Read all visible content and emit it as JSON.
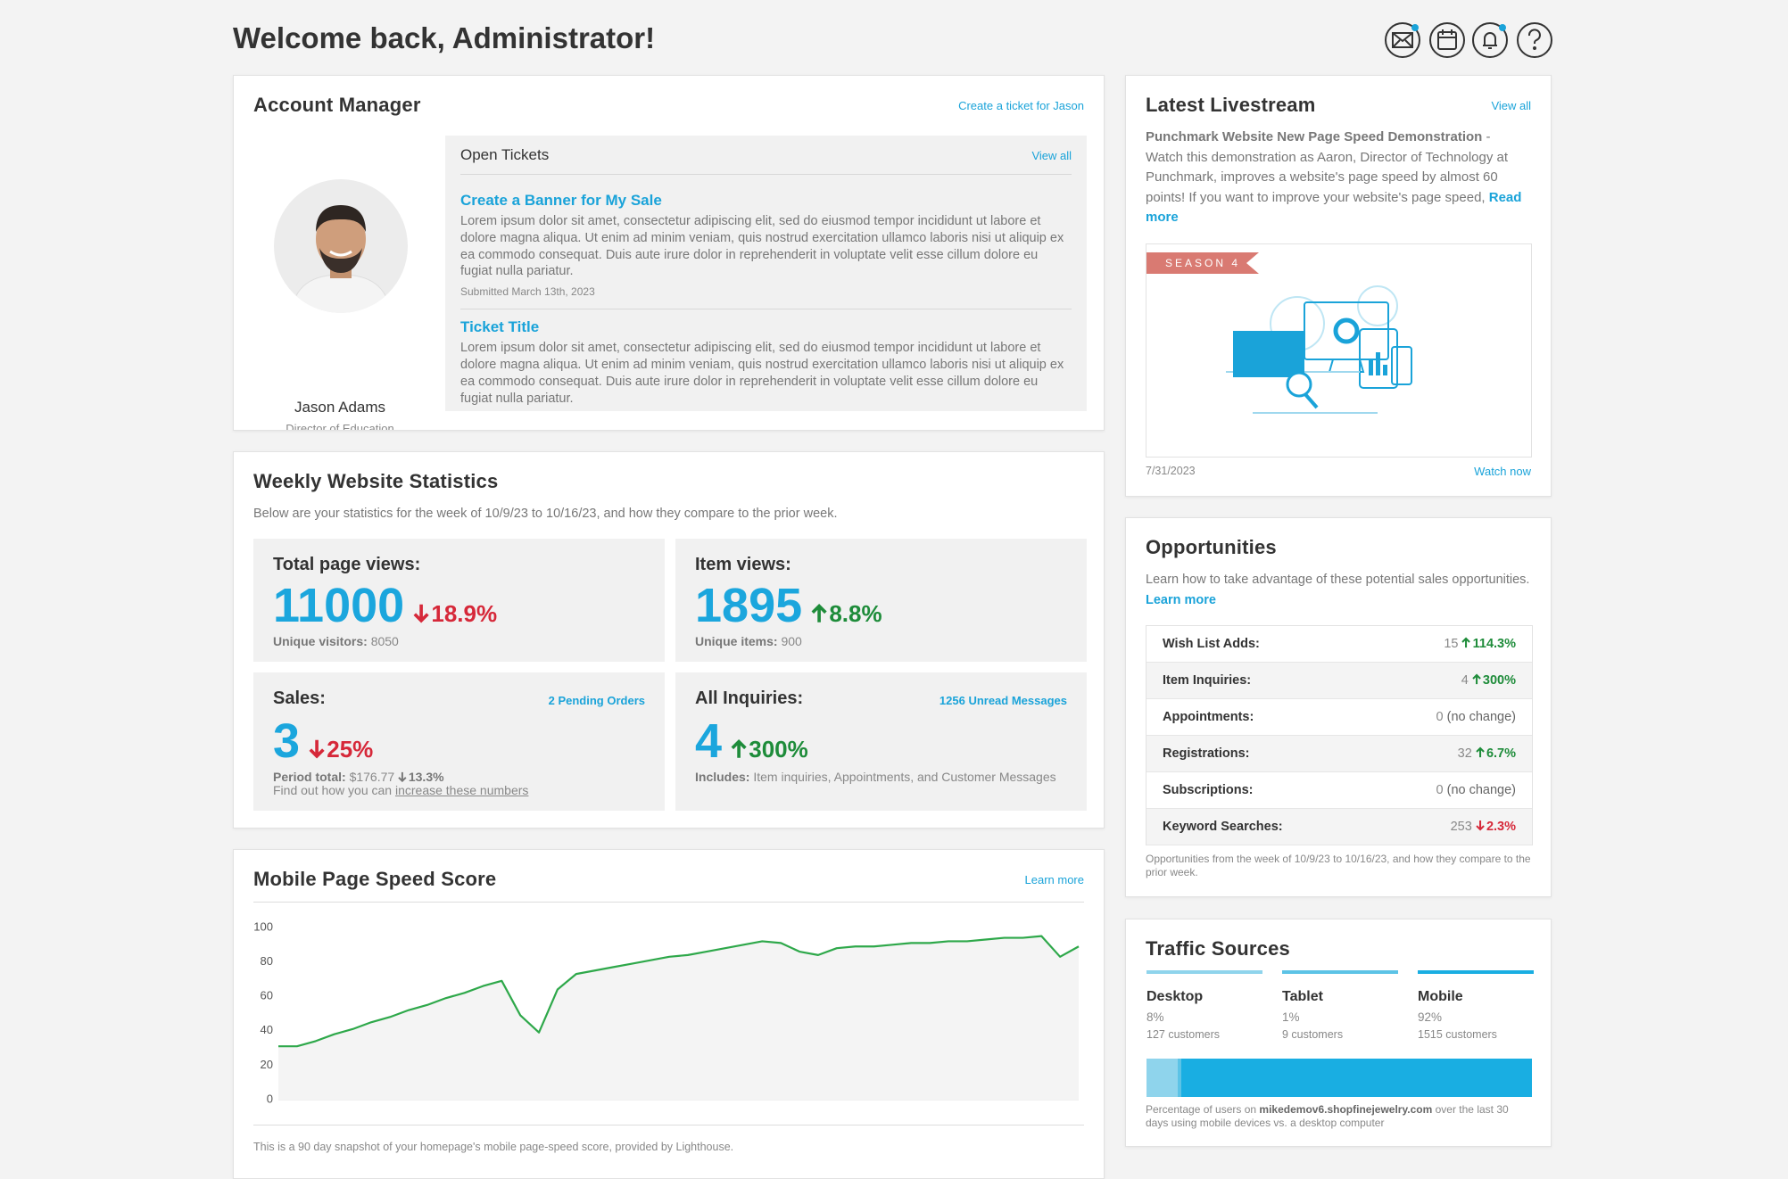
{
  "header": {
    "title": "Welcome back, Administrator!"
  },
  "account_manager": {
    "title": "Account Manager",
    "link": "Create a ticket for Jason",
    "name": "Jason Adams",
    "role": "Director of Education",
    "tickets": {
      "title": "Open Tickets",
      "link": "View all",
      "items": [
        {
          "title": "Create a Banner for My Sale",
          "body": "Lorem ipsum dolor sit amet, consectetur adipiscing elit, sed do eiusmod tempor incididunt ut labore et dolore magna aliqua. Ut enim ad minim veniam, quis nostrud exercitation ullamco laboris nisi ut aliquip ex ea commodo consequat. Duis aute irure dolor in reprehenderit in voluptate velit esse cillum dolore eu fugiat nulla pariatur.",
          "submitted": "Submitted March 13th, 2023"
        },
        {
          "title": "Ticket Title",
          "body": "Lorem ipsum dolor sit amet, consectetur adipiscing elit, sed do eiusmod tempor incididunt ut labore et dolore magna aliqua. Ut enim ad minim veniam, quis nostrud exercitation ullamco laboris nisi ut aliquip ex ea commodo consequat. Duis aute irure dolor in reprehenderit in voluptate velit esse cillum dolore eu fugiat nulla pariatur."
        }
      ]
    }
  },
  "weekly_stats": {
    "title": "Weekly Website Statistics",
    "intro": "Below are your statistics for the week of 10/9/23 to 10/16/23, and how they compare to the prior week.",
    "cards": [
      {
        "label": "Total page views:",
        "value": "11000",
        "change": "18.9%",
        "trend": "down",
        "sub_label": "Unique visitors:",
        "sub_value": "8050"
      },
      {
        "label": "Item views:",
        "value": "1895",
        "change": "8.8%",
        "trend": "up",
        "sub_label": "Unique items:",
        "sub_value": "900"
      },
      {
        "label": "Sales:",
        "link": "2 Pending Orders",
        "value": "3",
        "change": "25%",
        "trend": "down",
        "sub_label": "Period total:",
        "sub_value": "$176.77",
        "sub_change": "13.3%",
        "sub_trend": "down",
        "note": "Find out how you can",
        "note_link": "increase these numbers"
      },
      {
        "label": "All Inquiries:",
        "link": "1256 Unread Messages",
        "value": "4",
        "change": "300%",
        "trend": "up",
        "sub_label": "Includes:",
        "sub_value": "Item inquiries, Appointments, and Customer Messages"
      }
    ]
  },
  "speed": {
    "title": "Mobile Page Speed Score",
    "link": "Learn more",
    "type": "line",
    "color": "#2ea84a",
    "values": [
      31,
      31,
      34,
      38,
      41,
      45,
      48,
      52,
      55,
      59,
      62,
      66,
      69,
      49,
      39,
      64,
      73,
      75,
      77,
      79,
      81,
      83,
      84,
      86,
      88,
      90,
      92,
      91,
      86,
      84,
      88,
      89,
      89,
      90,
      91,
      91,
      92,
      92,
      93,
      94,
      94,
      95,
      83,
      89
    ],
    "ylim": [
      0,
      100
    ],
    "yticks": [
      0,
      20,
      40,
      60,
      80,
      100
    ],
    "note": "This is a 90 day snapshot of your homepage's mobile page-speed score, provided by Lighthouse."
  },
  "livestream": {
    "title": "Latest Livestream",
    "link": "View all",
    "video_title": "Punchmark Website New Page Speed Demonstration",
    "description": " - Watch this demonstration as Aaron, Director of Technology at Punchmark, improves a website's page speed by almost 60 points! If you want to improve your website's page speed,",
    "read_more": "Read more",
    "badge": "SEASON 4",
    "date": "7/31/2023",
    "watch": "Watch now"
  },
  "opportunities": {
    "title": "Opportunities",
    "intro": "Learn how to take advantage of these potential sales opportunities.",
    "intro_link": "Learn more",
    "rows": [
      {
        "label": "Wish List Adds:",
        "count": "15",
        "change": "114.3%",
        "trend": "up"
      },
      {
        "label": "Item Inquiries:",
        "count": "4",
        "change": "300%",
        "trend": "up"
      },
      {
        "label": "Appointments:",
        "count": "0",
        "change": "(no change)"
      },
      {
        "label": "Registrations:",
        "count": "32",
        "change": "6.7%",
        "trend": "up"
      },
      {
        "label": "Subscriptions:",
        "count": "0",
        "change": "(no change)"
      },
      {
        "label": "Keyword Searches:",
        "count": "253",
        "change": "2.3%",
        "trend": "down"
      }
    ],
    "note": "Opportunities from the week of 10/9/23 to 10/16/23, and how they compare to the prior week."
  },
  "traffic": {
    "title": "Traffic Sources",
    "sources": [
      {
        "name": "Desktop",
        "share": 8,
        "share_label": "8%",
        "customers": "127 customers",
        "color": "#8fd4ec"
      },
      {
        "name": "Tablet",
        "share": 1,
        "share_label": "1%",
        "customers": "9 customers",
        "color": "#5cc3e6"
      },
      {
        "name": "Mobile",
        "share": 92,
        "share_label": "92%",
        "customers": "1515 customers",
        "color": "#19aee2"
      }
    ],
    "note_start": "Percentage of users on",
    "note_domain": "mikedemov6.shopfinejewelry.com",
    "note_end": "over the last 30 days using mobile devices vs. a desktop computer"
  }
}
